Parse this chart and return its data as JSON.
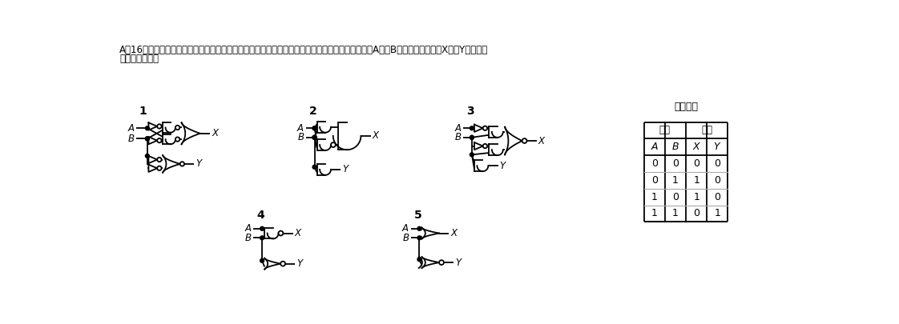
{
  "title_line1": "A－16　次に示す真理値表と同じ動作をする論理回路を下の番号から選べ。ただし、正論理とし、A及びBをそれぞれ入力、X及びYをそれぞ",
  "title_line2": "れ出力とする。",
  "truth_table_title": "真理値表",
  "header1_left": "入力",
  "header1_right": "出力",
  "data_rows": [
    [
      0,
      0,
      0,
      0
    ],
    [
      0,
      1,
      1,
      0
    ],
    [
      1,
      0,
      1,
      0
    ],
    [
      1,
      1,
      0,
      1
    ]
  ]
}
